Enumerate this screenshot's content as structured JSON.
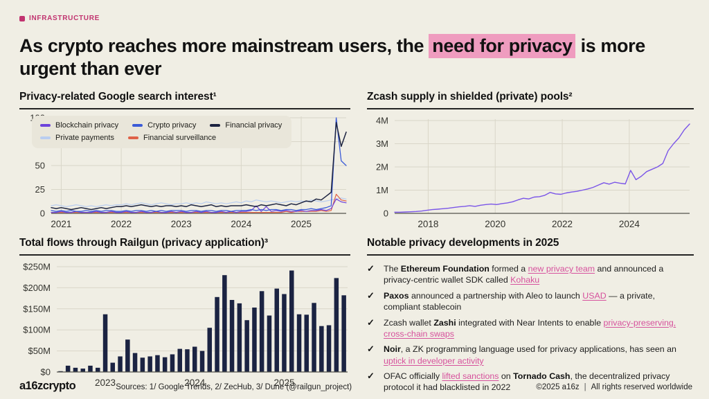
{
  "theme": {
    "background": "#f0eee4",
    "tag_color": "#c1336f",
    "highlight_pink": "#ef9cbf",
    "link_pink": "#d6509c",
    "grid_color": "#d9d6c8",
    "axis_color": "#52524a",
    "legend_bg": "#e9e6da",
    "bar_color": "#1b2342"
  },
  "header": {
    "tag": "INFRASTRUCTURE",
    "title_pre": "As crypto reaches more mainstream users, the ",
    "title_highlight": "need for privacy",
    "title_post": " is more urgent than ever"
  },
  "search_chart": {
    "title": "Privacy-related Google search interest¹",
    "chart_data": {
      "type": "line",
      "x_start": "2020-11",
      "x_end": "2025-10",
      "x_step": "month",
      "ylim": [
        0,
        100
      ],
      "yticks": [
        {
          "v": 0,
          "label": "0"
        },
        {
          "v": 25,
          "label": "25"
        },
        {
          "v": 50,
          "label": "50"
        },
        {
          "v": 75,
          "label": "75"
        },
        {
          "v": 100,
          "label": "100"
        }
      ],
      "xticks": [
        {
          "i": 2,
          "label": "2021"
        },
        {
          "i": 14,
          "label": "2022"
        },
        {
          "i": 26,
          "label": "2023"
        },
        {
          "i": 38,
          "label": "2024"
        },
        {
          "i": 50,
          "label": "2025"
        }
      ],
      "grid": true,
      "legend_position": "top-left",
      "legend_rows": [
        [
          "Blockchain privacy",
          "Crypto privacy",
          "Financial privacy"
        ],
        [
          "Private payments",
          "Financial surveillance"
        ]
      ],
      "series": [
        {
          "name": "Private payments",
          "color": "#b9cdf0",
          "width": 1.2,
          "values": [
            8,
            9,
            8,
            7,
            8,
            9,
            8,
            7,
            8,
            7,
            8,
            9,
            8,
            9,
            9,
            10,
            9,
            10,
            11,
            10,
            9,
            10,
            11,
            10,
            9,
            10,
            10,
            11,
            10,
            11,
            10,
            12,
            11,
            10,
            11,
            10,
            11,
            12,
            11,
            13,
            12,
            14,
            13,
            12,
            13,
            12,
            11,
            12,
            13,
            12,
            13,
            12,
            14,
            13,
            12,
            13,
            14,
            15,
            16,
            15
          ]
        },
        {
          "name": "Financial surveillance",
          "color": "#df6248",
          "width": 1.2,
          "values": [
            1,
            1,
            1,
            1,
            1,
            1,
            1,
            1,
            1,
            1,
            1,
            1,
            1,
            1,
            1,
            1,
            1,
            1,
            1,
            1,
            1,
            1,
            1,
            1,
            1,
            1,
            1,
            1,
            1,
            1,
            1,
            1,
            1,
            1,
            1,
            1,
            1,
            1,
            1,
            1,
            1,
            1,
            1,
            1,
            1,
            1,
            1,
            2,
            1,
            2,
            2,
            2,
            2,
            2,
            3,
            2,
            3,
            20,
            14,
            13
          ]
        },
        {
          "name": "Blockchain privacy",
          "color": "#6d43db",
          "width": 1.2,
          "values": [
            1,
            1,
            2,
            1,
            1,
            2,
            1,
            1,
            1,
            2,
            1,
            1,
            2,
            1,
            1,
            2,
            1,
            1,
            2,
            1,
            1,
            2,
            1,
            1,
            2,
            1,
            2,
            1,
            1,
            2,
            1,
            2,
            1,
            1,
            2,
            1,
            2,
            1,
            2,
            2,
            3,
            8,
            2,
            7,
            2,
            3,
            2,
            3,
            2,
            2,
            3,
            2,
            3,
            3,
            4,
            3,
            5,
            15,
            12,
            11
          ]
        },
        {
          "name": "Crypto privacy",
          "color": "#3b5bd7",
          "width": 1.3,
          "values": [
            3,
            2,
            3,
            2,
            3,
            2,
            2,
            3,
            2,
            3,
            2,
            3,
            3,
            2,
            2,
            3,
            2,
            3,
            3,
            2,
            3,
            2,
            3,
            2,
            3,
            3,
            3,
            2,
            3,
            3,
            2,
            3,
            3,
            2,
            3,
            3,
            2,
            3,
            3,
            3,
            4,
            3,
            4,
            3,
            4,
            4,
            3,
            4,
            4,
            3,
            4,
            4,
            5,
            4,
            5,
            6,
            8,
            100,
            55,
            50
          ]
        },
        {
          "name": "Financial privacy",
          "color": "#1c2340",
          "width": 1.5,
          "values": [
            6,
            5,
            6,
            5,
            4,
            5,
            6,
            5,
            4,
            5,
            6,
            5,
            6,
            7,
            7,
            8,
            7,
            8,
            9,
            8,
            7,
            8,
            7,
            8,
            8,
            7,
            8,
            7,
            9,
            8,
            7,
            8,
            9,
            7,
            8,
            7,
            8,
            8,
            8,
            9,
            8,
            7,
            9,
            8,
            9,
            10,
            9,
            8,
            10,
            9,
            11,
            13,
            12,
            15,
            14,
            18,
            22,
            95,
            70,
            85
          ]
        }
      ]
    }
  },
  "zcash_chart": {
    "title": "Zcash supply in shielded (private) pools²",
    "chart_data": {
      "type": "line",
      "x_start_year": 2017.0,
      "x_end_year": 2025.8,
      "ylim_millions": [
        0,
        4
      ],
      "yticks": [
        {
          "v": 0,
          "label": "0"
        },
        {
          "v": 1,
          "label": "1M"
        },
        {
          "v": 2,
          "label": "2M"
        },
        {
          "v": 3,
          "label": "3M"
        },
        {
          "v": 4,
          "label": "4M"
        }
      ],
      "xticks": [
        {
          "year": 2018,
          "label": "2018"
        },
        {
          "year": 2020,
          "label": "2020"
        },
        {
          "year": 2022,
          "label": "2022"
        },
        {
          "year": 2024,
          "label": "2024"
        }
      ],
      "grid": true,
      "color": "#7a55e8",
      "values_millions": [
        0.05,
        0.05,
        0.06,
        0.07,
        0.08,
        0.1,
        0.13,
        0.16,
        0.18,
        0.2,
        0.22,
        0.25,
        0.28,
        0.3,
        0.33,
        0.3,
        0.35,
        0.38,
        0.4,
        0.38,
        0.42,
        0.45,
        0.5,
        0.58,
        0.65,
        0.62,
        0.7,
        0.72,
        0.78,
        0.9,
        0.84,
        0.82,
        0.88,
        0.92,
        0.95,
        1.0,
        1.05,
        1.12,
        1.22,
        1.32,
        1.26,
        1.34,
        1.3,
        1.27,
        1.85,
        1.45,
        1.6,
        1.8,
        1.9,
        2.0,
        2.15,
        2.7,
        3.0,
        3.25,
        3.6,
        3.85
      ]
    }
  },
  "railgun_chart": {
    "title": "Total flows through Railgun (privacy application)³",
    "chart_data": {
      "type": "bar",
      "x_start": "2022-07",
      "x_end": "2025-09",
      "x_step": "month",
      "ylim_millions": [
        0,
        250
      ],
      "yticks": [
        {
          "v": 0,
          "label": "$0"
        },
        {
          "v": 50,
          "label": "$50M"
        },
        {
          "v": 100,
          "label": "$100M"
        },
        {
          "v": 150,
          "label": "$150M"
        },
        {
          "v": 200,
          "label": "$200M"
        },
        {
          "v": 250,
          "label": "$250M"
        }
      ],
      "xticks": [
        {
          "i": 6,
          "label": "2023"
        },
        {
          "i": 18,
          "label": "2024"
        },
        {
          "i": 30,
          "label": "2025"
        }
      ],
      "grid": true,
      "bar_color": "#1b2342",
      "values_millions": [
        2,
        15,
        10,
        8,
        15,
        10,
        137,
        22,
        37,
        77,
        45,
        34,
        37,
        40,
        35,
        42,
        55,
        54,
        60,
        50,
        105,
        178,
        230,
        171,
        163,
        123,
        153,
        192,
        134,
        198,
        185,
        241,
        137,
        136,
        164,
        109,
        111,
        223,
        182
      ]
    }
  },
  "developments": {
    "title": "Notable privacy developments in 2025",
    "check_glyph": "✓",
    "items": [
      [
        {
          "t": "The ",
          "s": "n"
        },
        {
          "t": "Ethereum Foundation",
          "s": "b"
        },
        {
          "t": " formed a ",
          "s": "n"
        },
        {
          "t": "new privacy team",
          "s": "l"
        },
        {
          "t": " and announced a privacy-centric wallet SDK called ",
          "s": "n"
        },
        {
          "t": "Kohaku",
          "s": "l"
        }
      ],
      [
        {
          "t": "Paxos",
          "s": "b"
        },
        {
          "t": " announced a partnership with Aleo to launch ",
          "s": "n"
        },
        {
          "t": "USAD",
          "s": "l"
        },
        {
          "t": " — a private, compliant stablecoin",
          "s": "n"
        }
      ],
      [
        {
          "t": "Zcash wallet ",
          "s": "n"
        },
        {
          "t": "Zashi",
          "s": "b"
        },
        {
          "t": " integrated with Near Intents to enable ",
          "s": "n"
        },
        {
          "t": "privacy-preserving, cross-chain swaps",
          "s": "l"
        }
      ],
      [
        {
          "t": "Noir",
          "s": "b"
        },
        {
          "t": ", a ZK programming language used for privacy applications, has seen an ",
          "s": "n"
        },
        {
          "t": "uptick in developer activity",
          "s": "l"
        }
      ],
      [
        {
          "t": "OFAC officially ",
          "s": "n"
        },
        {
          "t": "lifted sanctions",
          "s": "l"
        },
        {
          "t": " on ",
          "s": "n"
        },
        {
          "t": "Tornado Cash",
          "s": "b"
        },
        {
          "t": ", the decentralized privacy protocol it had blacklisted in 2022",
          "s": "n"
        }
      ]
    ]
  },
  "footer": {
    "logo": "a16zcrypto",
    "sources": "Sources: 1/ Google Trends, 2/ ZecHub, 3/ Dune (@railgun_project)",
    "copyright": "©2025 a16z",
    "separator": "|",
    "rights": "All rights reserved worldwide"
  }
}
